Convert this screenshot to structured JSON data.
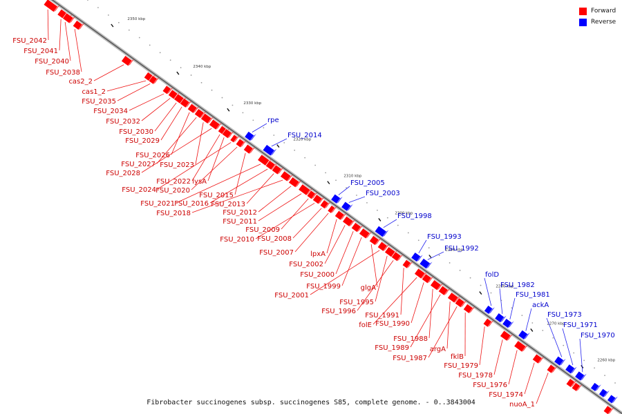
{
  "legend": [
    {
      "label": "Forward",
      "color": "#ff0000"
    },
    {
      "label": "Reverse",
      "color": "#0000ff"
    }
  ],
  "caption": "Fibrobacter succinogenes subsp. succinogenes S85, complete genome. - 0..3843004",
  "ticks": [
    "2350 kbp",
    "2340 kbp",
    "2330 kbp",
    "2320 kbp",
    "2310 kbp",
    "2300 kbp",
    "2290 kbp",
    "2280 kbp",
    "2270 kbp",
    "2260 kbp"
  ],
  "forward_labels": [
    "FSU_2042",
    "FSU_2041",
    "FSU_2040",
    "FSU_2038",
    "cas2_2",
    "cas1_2",
    "FSU_2035",
    "FSU_2034",
    "FSU_2032",
    "FSU_2030",
    "FSU_2029",
    "FSU_2026",
    "FSU_2027",
    "FSU_2023",
    "FSU_2028",
    "FSU_2022",
    "lysA",
    "FSU_2024",
    "FSU_2020",
    "FSU_2015",
    "FSU_2021",
    "FSU_2016",
    "FSU_2013",
    "FSU_2018",
    "FSU_2012",
    "FSU_2011",
    "FSU_2009",
    "FSU_2010",
    "FSU_2008",
    "FSU_2007",
    "lpxA",
    "FSU_2002",
    "FSU_2000",
    "FSU_1999",
    "glgA",
    "FSU_2001",
    "FSU_1995",
    "FSU_1996",
    "FSU_1991",
    "folE",
    "FSU_1990",
    "FSU_1988",
    "FSU_1989",
    "argA",
    "FSU_1987",
    "fklB",
    "FSU_1979",
    "FSU_1978",
    "FSU_1976",
    "FSU_1974",
    "nuoA_1"
  ],
  "reverse_labels": [
    "rpe",
    "FSU_2014",
    "FSU_2005",
    "FSU_2003",
    "FSU_1998",
    "FSU_1993",
    "FSU_1992",
    "folD",
    "FSU_1982",
    "FSU_1981",
    "ackA",
    "FSU_1973",
    "FSU_1971",
    "FSU_1970"
  ]
}
